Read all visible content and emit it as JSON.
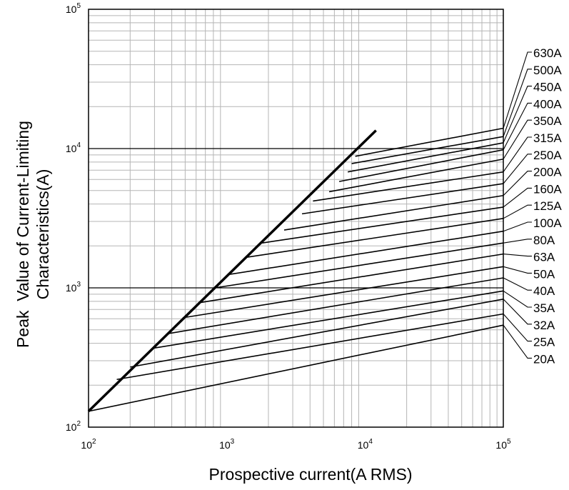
{
  "chart_data": {
    "type": "line",
    "title": "",
    "xlabel": "Prospective current(A RMS)",
    "ylabel_line1": "Peak  Value of Current-Limiting",
    "ylabel_line2": "Characteristics(A)",
    "x_scale": "log",
    "y_scale": "log",
    "xlim": [
      100,
      100000
    ],
    "ylim": [
      100,
      100000
    ],
    "grid": true,
    "x_ticks": [
      {
        "value": 100,
        "base": "10",
        "exp": "2"
      },
      {
        "value": 1000,
        "base": "10",
        "exp": "3"
      },
      {
        "value": 10000,
        "base": "10",
        "exp": "4"
      },
      {
        "value": 100000,
        "base": "10",
        "exp": "5"
      }
    ],
    "y_ticks": [
      {
        "value": 100,
        "base": "10",
        "exp": "2"
      },
      {
        "value": 1000,
        "base": "10",
        "exp": "3"
      },
      {
        "value": 10000,
        "base": "10",
        "exp": "4"
      },
      {
        "value": 100000,
        "base": "10",
        "exp": "5"
      }
    ],
    "limit_line": {
      "description": "maximum peak (unlimited) line",
      "points": [
        [
          100,
          130
        ],
        [
          12000,
          13500
        ]
      ]
    },
    "series": [
      {
        "name": "630A",
        "start": [
          8500,
          8800
        ],
        "end": [
          100000,
          14000
        ]
      },
      {
        "name": "500A",
        "start": [
          8000,
          7800
        ],
        "end": [
          100000,
          12200
        ]
      },
      {
        "name": "450A",
        "start": [
          7500,
          6800
        ],
        "end": [
          100000,
          11000
        ]
      },
      {
        "name": "400A",
        "start": [
          6500,
          5800
        ],
        "end": [
          100000,
          9800
        ]
      },
      {
        "name": "350A",
        "start": [
          5500,
          4900
        ],
        "end": [
          100000,
          8400
        ]
      },
      {
        "name": "315A",
        "start": [
          4200,
          4200
        ],
        "end": [
          100000,
          6800
        ]
      },
      {
        "name": "250A",
        "start": [
          3500,
          3400
        ],
        "end": [
          100000,
          5600
        ]
      },
      {
        "name": "200A",
        "start": [
          2600,
          2600
        ],
        "end": [
          100000,
          4600
        ]
      },
      {
        "name": "160A",
        "start": [
          1800,
          2100
        ],
        "end": [
          100000,
          3800
        ]
      },
      {
        "name": "125A",
        "start": [
          1350,
          1650
        ],
        "end": [
          100000,
          3150
        ]
      },
      {
        "name": "100A",
        "start": [
          1050,
          1250
        ],
        "end": [
          100000,
          2550
        ]
      },
      {
        "name": "80A",
        "start": [
          820,
          1000
        ],
        "end": [
          100000,
          2100
        ]
      },
      {
        "name": "63A",
        "start": [
          620,
          780
        ],
        "end": [
          100000,
          1750
        ]
      },
      {
        "name": "50A",
        "start": [
          480,
          610
        ],
        "end": [
          100000,
          1420
        ]
      },
      {
        "name": "40A",
        "start": [
          380,
          470
        ],
        "end": [
          100000,
          1180
        ]
      },
      {
        "name": "35A",
        "start": [
          300,
          370
        ],
        "end": [
          100000,
          950
        ]
      },
      {
        "name": "32A",
        "start": [
          200,
          270
        ],
        "end": [
          100000,
          830
        ]
      },
      {
        "name": "25A",
        "start": [
          160,
          220
        ],
        "end": [
          100000,
          650
        ]
      },
      {
        "name": "20A",
        "start": [
          100,
          130
        ],
        "end": [
          100000,
          540
        ]
      }
    ]
  }
}
